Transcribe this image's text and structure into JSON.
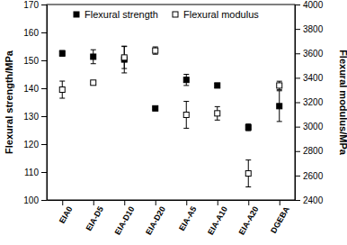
{
  "chart_data": {
    "type": "scatter",
    "categories": [
      "EIA0",
      "EIA-D5",
      "EIA-D10",
      "EIA-D20",
      "EIA-A5",
      "EIA-A10",
      "EIA-A20",
      "DGEBA"
    ],
    "series": [
      {
        "name": "Flexural strength",
        "color": "#000000",
        "marker": "square",
        "values": [
          152.5,
          151.3,
          150.3,
          132.8,
          143.0,
          141.0,
          126.0,
          133.6
        ],
        "errors": [
          1.0,
          2.5,
          4.8,
          0.4,
          2.0,
          0.8,
          1.2,
          5.5
        ]
      },
      {
        "name": "Flexural modulus",
        "color": "#000000",
        "marker": "open-square",
        "axis": "y2",
        "values": [
          3303,
          3360,
          3566,
          3623,
          3097,
          3109,
          2617,
          3337
        ],
        "errors": [
          70,
          10,
          90,
          30,
          110,
          55,
          110,
          35
        ]
      }
    ],
    "y_label": "Flexural strength/MPa",
    "y2_label": "Flexural modulus/MPa",
    "ylim": [
      100,
      170
    ],
    "yticks": [
      100,
      110,
      120,
      130,
      140,
      150,
      160,
      170
    ],
    "y2lim": [
      2400,
      4000
    ],
    "y2ticks": [
      2400,
      2600,
      2800,
      3000,
      3200,
      3400,
      3600,
      3800,
      4000
    ],
    "legend": "top",
    "grid": false
  }
}
